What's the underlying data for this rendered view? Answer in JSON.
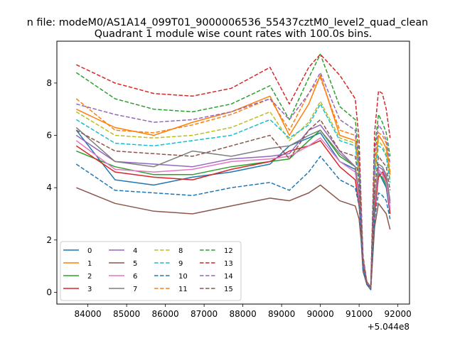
{
  "chart_data": {
    "type": "line",
    "suptitle": "n file: modeM0/AS1A14_099T01_9000006536_55437cztM0_level2_quad_clean",
    "title": "Quadrant 1 module wise count rates with 100.0s bins.",
    "xlabel": "",
    "ylabel": "",
    "offset_label": "+5.044e8",
    "x_offset": 504400000,
    "xlim": [
      83200,
      92300
    ],
    "ylim": [
      -0.45,
      9.6
    ],
    "x_ticks": [
      84000,
      85000,
      86000,
      87000,
      88000,
      89000,
      90000,
      91000,
      92000
    ],
    "x_tick_labels": [
      "84000",
      "85000",
      "86000",
      "87000",
      "88000",
      "89000",
      "90000",
      "91000",
      "92000"
    ],
    "y_ticks": [
      0,
      2,
      4,
      6,
      8
    ],
    "y_tick_labels": [
      "0",
      "2",
      "4",
      "6",
      "8"
    ],
    "grid": false,
    "legend_placement": "lower-left",
    "legend_ncol": 4,
    "x": [
      83700,
      84700,
      85700,
      86700,
      87700,
      88700,
      89200,
      89700,
      90000,
      90500,
      90900,
      91000,
      91050,
      91100,
      91200,
      91300,
      91400,
      91500,
      91600,
      91700,
      91800
    ],
    "series": [
      {
        "name": "0",
        "color": "#1f77b4",
        "style": "solid",
        "values": [
          6.2,
          4.3,
          4.1,
          4.4,
          4.6,
          4.9,
          5.6,
          5.9,
          6.1,
          5.0,
          4.7,
          3.6,
          2.5,
          1.0,
          0.3,
          0.2,
          3.0,
          4.6,
          4.3,
          4.0,
          3.0
        ]
      },
      {
        "name": "1",
        "color": "#ff7f0e",
        "style": "solid",
        "values": [
          7.0,
          6.3,
          6.0,
          6.5,
          6.9,
          7.5,
          6.0,
          7.2,
          8.3,
          6.0,
          5.8,
          4.8,
          2.8,
          1.2,
          0.4,
          0.2,
          4.5,
          6.0,
          5.8,
          5.5,
          4.5
        ]
      },
      {
        "name": "2",
        "color": "#2ca02c",
        "style": "solid",
        "values": [
          5.4,
          4.8,
          4.5,
          4.5,
          4.8,
          5.0,
          5.1,
          5.8,
          6.2,
          5.2,
          4.8,
          3.8,
          2.6,
          1.1,
          0.3,
          0.2,
          3.3,
          4.5,
          4.4,
          4.1,
          3.2
        ]
      },
      {
        "name": "3",
        "color": "#d62728",
        "style": "solid",
        "values": [
          5.6,
          4.6,
          4.4,
          4.3,
          4.7,
          5.0,
          5.4,
          5.6,
          5.8,
          4.8,
          4.3,
          3.3,
          2.4,
          1.0,
          0.3,
          0.2,
          3.0,
          4.4,
          4.6,
          4.3,
          3.0
        ]
      },
      {
        "name": "4",
        "color": "#9467bd",
        "style": "solid",
        "values": [
          6.0,
          5.0,
          4.9,
          4.8,
          5.1,
          5.2,
          5.3,
          6.2,
          6.4,
          5.4,
          4.8,
          3.7,
          2.6,
          1.1,
          0.3,
          0.2,
          3.5,
          4.8,
          4.7,
          4.4,
          3.4
        ]
      },
      {
        "name": "5",
        "color": "#8c564b",
        "style": "solid",
        "values": [
          4.0,
          3.4,
          3.1,
          3.0,
          3.3,
          3.6,
          3.5,
          3.8,
          4.1,
          3.5,
          3.3,
          2.8,
          2.0,
          0.8,
          0.3,
          0.1,
          2.5,
          3.4,
          3.2,
          3.0,
          2.4
        ]
      },
      {
        "name": "6",
        "color": "#e377c2",
        "style": "solid",
        "values": [
          5.8,
          4.7,
          4.6,
          4.7,
          5.0,
          5.1,
          5.2,
          5.6,
          5.9,
          5.0,
          4.6,
          3.6,
          2.5,
          1.0,
          0.3,
          0.2,
          3.3,
          4.7,
          4.5,
          4.2,
          3.2
        ]
      },
      {
        "name": "7",
        "color": "#7f7f7f",
        "style": "solid",
        "values": [
          6.3,
          5.0,
          4.8,
          5.4,
          5.2,
          5.5,
          5.6,
          6.0,
          6.2,
          5.3,
          4.8,
          3.8,
          2.7,
          1.1,
          0.3,
          0.2,
          3.5,
          4.9,
          4.8,
          4.5,
          3.5
        ]
      },
      {
        "name": "8",
        "color": "#bcbd22",
        "style": "dashed",
        "values": [
          6.9,
          6.0,
          5.9,
          6.0,
          6.3,
          6.9,
          5.8,
          6.5,
          7.3,
          5.9,
          5.7,
          4.5,
          2.9,
          1.2,
          0.4,
          0.2,
          4.6,
          5.8,
          5.6,
          5.3,
          4.3
        ]
      },
      {
        "name": "9",
        "color": "#17becf",
        "style": "dashed",
        "values": [
          6.6,
          5.7,
          5.6,
          5.8,
          6.0,
          6.6,
          5.9,
          6.4,
          7.2,
          5.8,
          5.6,
          4.4,
          2.8,
          1.2,
          0.4,
          0.2,
          4.4,
          5.6,
          5.5,
          5.2,
          4.2
        ]
      },
      {
        "name": "10",
        "color": "#1f77b4",
        "style": "dashed",
        "values": [
          4.9,
          3.9,
          3.8,
          3.7,
          4.0,
          4.2,
          3.9,
          4.6,
          5.2,
          4.3,
          4.0,
          3.3,
          2.3,
          0.9,
          0.3,
          0.1,
          2.8,
          3.8,
          3.7,
          3.5,
          2.8
        ]
      },
      {
        "name": "11",
        "color": "#ff7f0e",
        "style": "dashed",
        "values": [
          7.4,
          6.2,
          6.1,
          6.4,
          6.8,
          7.4,
          6.2,
          7.6,
          8.2,
          6.2,
          6.0,
          4.8,
          3.0,
          1.3,
          0.4,
          0.2,
          4.9,
          6.1,
          6.0,
          5.7,
          4.6
        ]
      },
      {
        "name": "12",
        "color": "#2ca02c",
        "style": "dashed",
        "values": [
          8.4,
          7.4,
          7.0,
          6.9,
          7.2,
          7.9,
          6.6,
          8.2,
          9.1,
          7.1,
          6.6,
          5.2,
          3.2,
          1.3,
          0.4,
          0.2,
          5.5,
          6.8,
          6.5,
          6.1,
          5.2
        ]
      },
      {
        "name": "13",
        "color": "#d62728",
        "style": "dashed",
        "values": [
          8.7,
          8.0,
          7.6,
          7.5,
          7.8,
          8.6,
          7.2,
          8.6,
          9.1,
          8.3,
          7.4,
          5.8,
          3.5,
          1.4,
          0.4,
          0.2,
          6.1,
          7.7,
          7.6,
          7.0,
          5.9
        ]
      },
      {
        "name": "14",
        "color": "#9467bd",
        "style": "dashed",
        "values": [
          7.2,
          6.8,
          6.5,
          6.6,
          6.9,
          7.4,
          6.6,
          7.6,
          8.4,
          6.6,
          6.2,
          5.0,
          3.1,
          1.3,
          0.4,
          0.2,
          5.2,
          6.4,
          6.2,
          5.8,
          4.9
        ]
      },
      {
        "name": "15",
        "color": "#8c564b",
        "style": "dashed",
        "values": [
          6.2,
          5.4,
          5.3,
          5.2,
          5.6,
          6.0,
          5.1,
          6.2,
          6.6,
          5.4,
          5.2,
          4.2,
          2.7,
          1.1,
          0.3,
          0.2,
          4.0,
          5.2,
          5.0,
          4.8,
          3.9
        ]
      }
    ]
  }
}
